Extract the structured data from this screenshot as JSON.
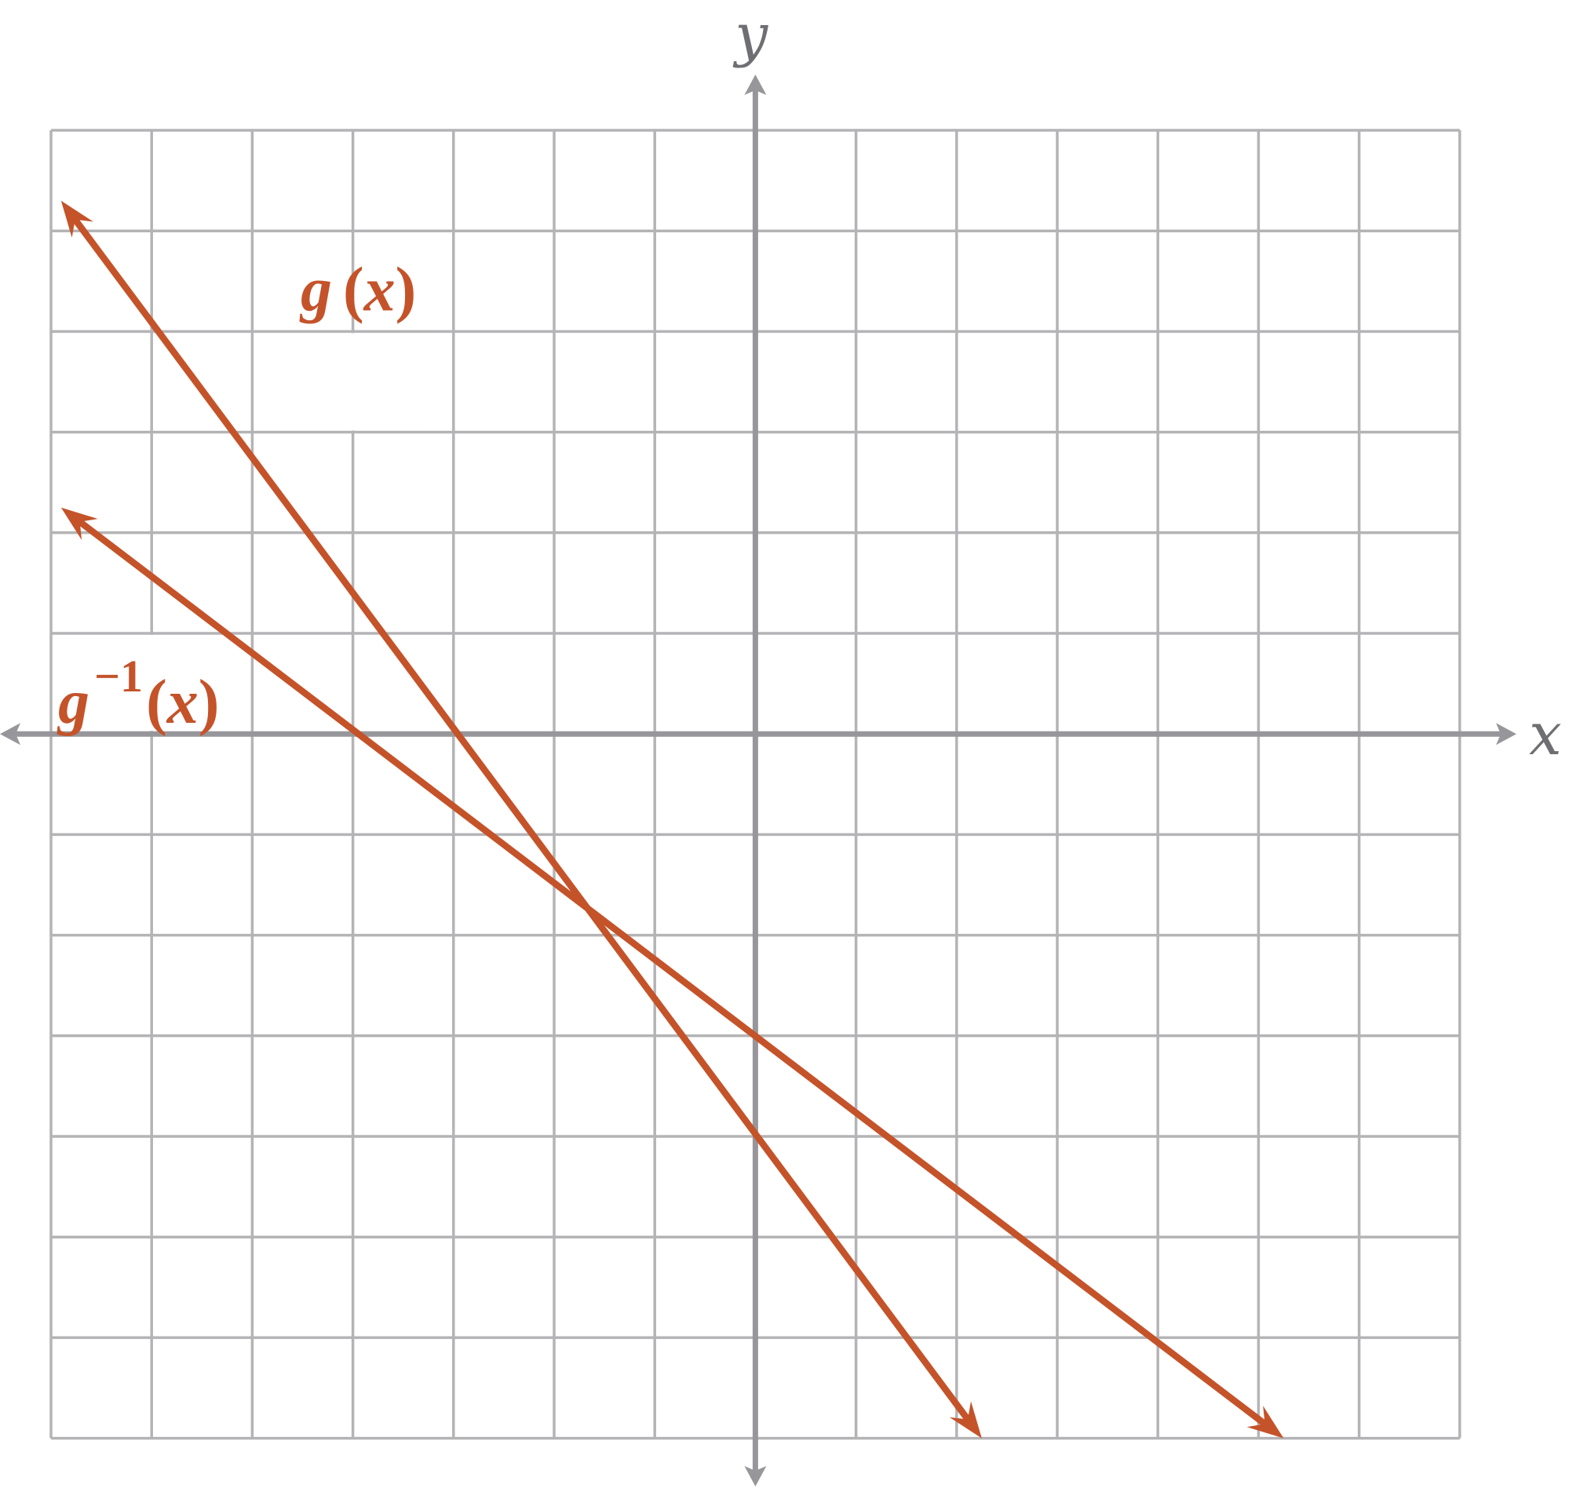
{
  "chart_data": {
    "type": "line",
    "title": "",
    "xlabel": "x",
    "ylabel": "y",
    "xlim": [
      -7,
      7
    ],
    "ylim": [
      -7,
      6
    ],
    "grid": true,
    "tick_labels": "none",
    "line_color": "#c4532a",
    "series": [
      {
        "name": "g(x)",
        "label": {
          "base": "g",
          "sup": "",
          "open": "(",
          "var": "x",
          "close": ")"
        },
        "x": [
          -6.9,
          2.25
        ],
        "y": [
          5.3,
          -7.0
        ]
      },
      {
        "name": "g−1(x)",
        "label": {
          "base": "g",
          "sup": "−1",
          "open": "(",
          "var": "x",
          "close": ")"
        },
        "x": [
          -6.9,
          5.25
        ],
        "y": [
          2.25,
          -7.0
        ]
      }
    ]
  }
}
